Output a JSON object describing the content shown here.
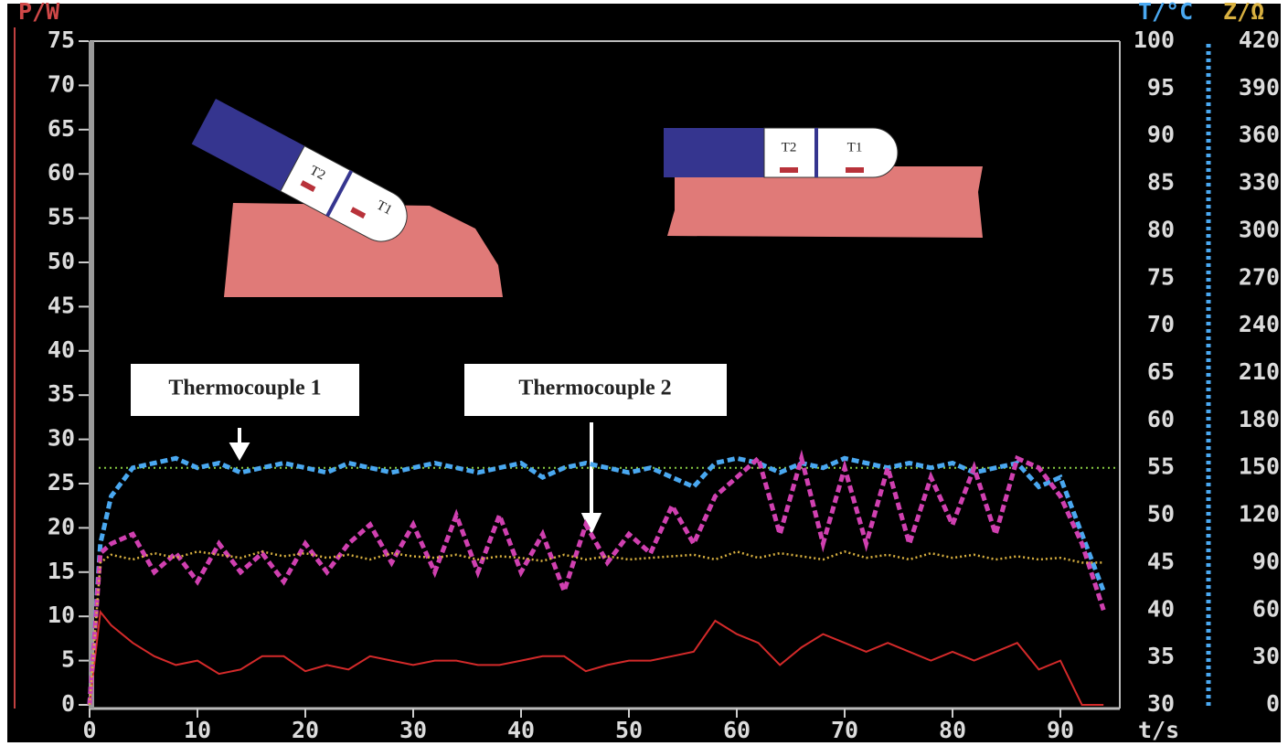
{
  "chart_data": {
    "type": "line",
    "x_label": "t/s",
    "y_label": "P/W",
    "y2_label": "T/°C",
    "y3_label": "Z/Ω",
    "xlim": [
      0,
      95
    ],
    "xticks": [
      0,
      10,
      20,
      30,
      40,
      50,
      60,
      70,
      80,
      90
    ],
    "ylim": [
      0,
      75
    ],
    "yticks": [
      0,
      5,
      10,
      15,
      20,
      25,
      30,
      35,
      40,
      45,
      50,
      55,
      60,
      65,
      70,
      75
    ],
    "y2lim": [
      30,
      100
    ],
    "y2ticks": [
      30,
      35,
      40,
      45,
      50,
      55,
      60,
      65,
      70,
      75,
      80,
      85,
      90,
      95,
      100
    ],
    "y3lim": [
      0,
      420
    ],
    "y3ticks": [
      0,
      30,
      60,
      90,
      120,
      150,
      180,
      210,
      240,
      270,
      300,
      330,
      360,
      390,
      420
    ],
    "x": [
      0,
      1,
      2,
      4,
      6,
      8,
      10,
      12,
      14,
      16,
      18,
      20,
      22,
      24,
      26,
      28,
      30,
      32,
      34,
      36,
      38,
      40,
      42,
      44,
      46,
      48,
      50,
      52,
      54,
      56,
      58,
      60,
      62,
      64,
      66,
      68,
      70,
      72,
      74,
      76,
      78,
      80,
      82,
      84,
      86,
      88,
      90,
      92,
      94
    ],
    "series": [
      {
        "axis": "y",
        "color": "#d42a2a",
        "style": "solid",
        "values": [
          0,
          10.5,
          9,
          7,
          5.5,
          4.5,
          5,
          3.5,
          4,
          5.5,
          5.5,
          3.8,
          4.5,
          4,
          5.5,
          5,
          4.5,
          5,
          5,
          4.5,
          4.5,
          5,
          5.5,
          5.5,
          3.8,
          4.5,
          5,
          5,
          5.5,
          6,
          9.5,
          8,
          7,
          4.5,
          6.5,
          8,
          7,
          6,
          7,
          6,
          5,
          6,
          5,
          6,
          7,
          4,
          5,
          0,
          0
        ]
      },
      {
        "name": "Thermocouple 1",
        "axis": "y2",
        "color": "#4aa8f0",
        "style": "dashed",
        "values": [
          30,
          47,
          52,
          55,
          55.5,
          56,
          55,
          55.5,
          54.5,
          55,
          55.5,
          55,
          54.5,
          55.5,
          55,
          54.5,
          55,
          55.5,
          55,
          54.5,
          55,
          55.5,
          54,
          55,
          55.5,
          55,
          54.5,
          55,
          54,
          53,
          55.5,
          56,
          55.5,
          54.5,
          55.5,
          55,
          56,
          55.5,
          55,
          55.5,
          55,
          55.5,
          54.5,
          55,
          55.5,
          53,
          54,
          48,
          42
        ]
      },
      {
        "name": "Thermocouple 2",
        "axis": "y2",
        "color": "#d040b0",
        "style": "dashed",
        "values": [
          30,
          46,
          47,
          48,
          44,
          46,
          43,
          47,
          44,
          46,
          43,
          47,
          44,
          47,
          49,
          45,
          49,
          44,
          50,
          44,
          50,
          44,
          48,
          42,
          49,
          45,
          48,
          46,
          51,
          47,
          52,
          54,
          56,
          48,
          56,
          47,
          55,
          47,
          55,
          47,
          54,
          49,
          55,
          48,
          56,
          55,
          52,
          47,
          40
        ]
      },
      {
        "axis": "y3",
        "color": "#d8b040",
        "style": "dotted",
        "values": [
          0,
          90,
          95,
          92,
          96,
          93,
          97,
          95,
          93,
          97,
          94,
          96,
          93,
          95,
          92,
          96,
          94,
          93,
          95,
          92,
          94,
          93,
          91,
          95,
          92,
          94,
          92,
          93,
          94,
          95,
          92,
          97,
          93,
          96,
          94,
          92,
          97,
          93,
          95,
          92,
          96,
          93,
          95,
          92,
          94,
          92,
          93,
          90,
          90
        ]
      }
    ],
    "reference_line": {
      "axis": "y2",
      "value": 55,
      "color": "#88cc44"
    },
    "annotations": [
      "Thermocouple 1",
      "Thermocouple 2"
    ],
    "diagram_labels": [
      "T2",
      "T1",
      "T2",
      "T1"
    ]
  }
}
